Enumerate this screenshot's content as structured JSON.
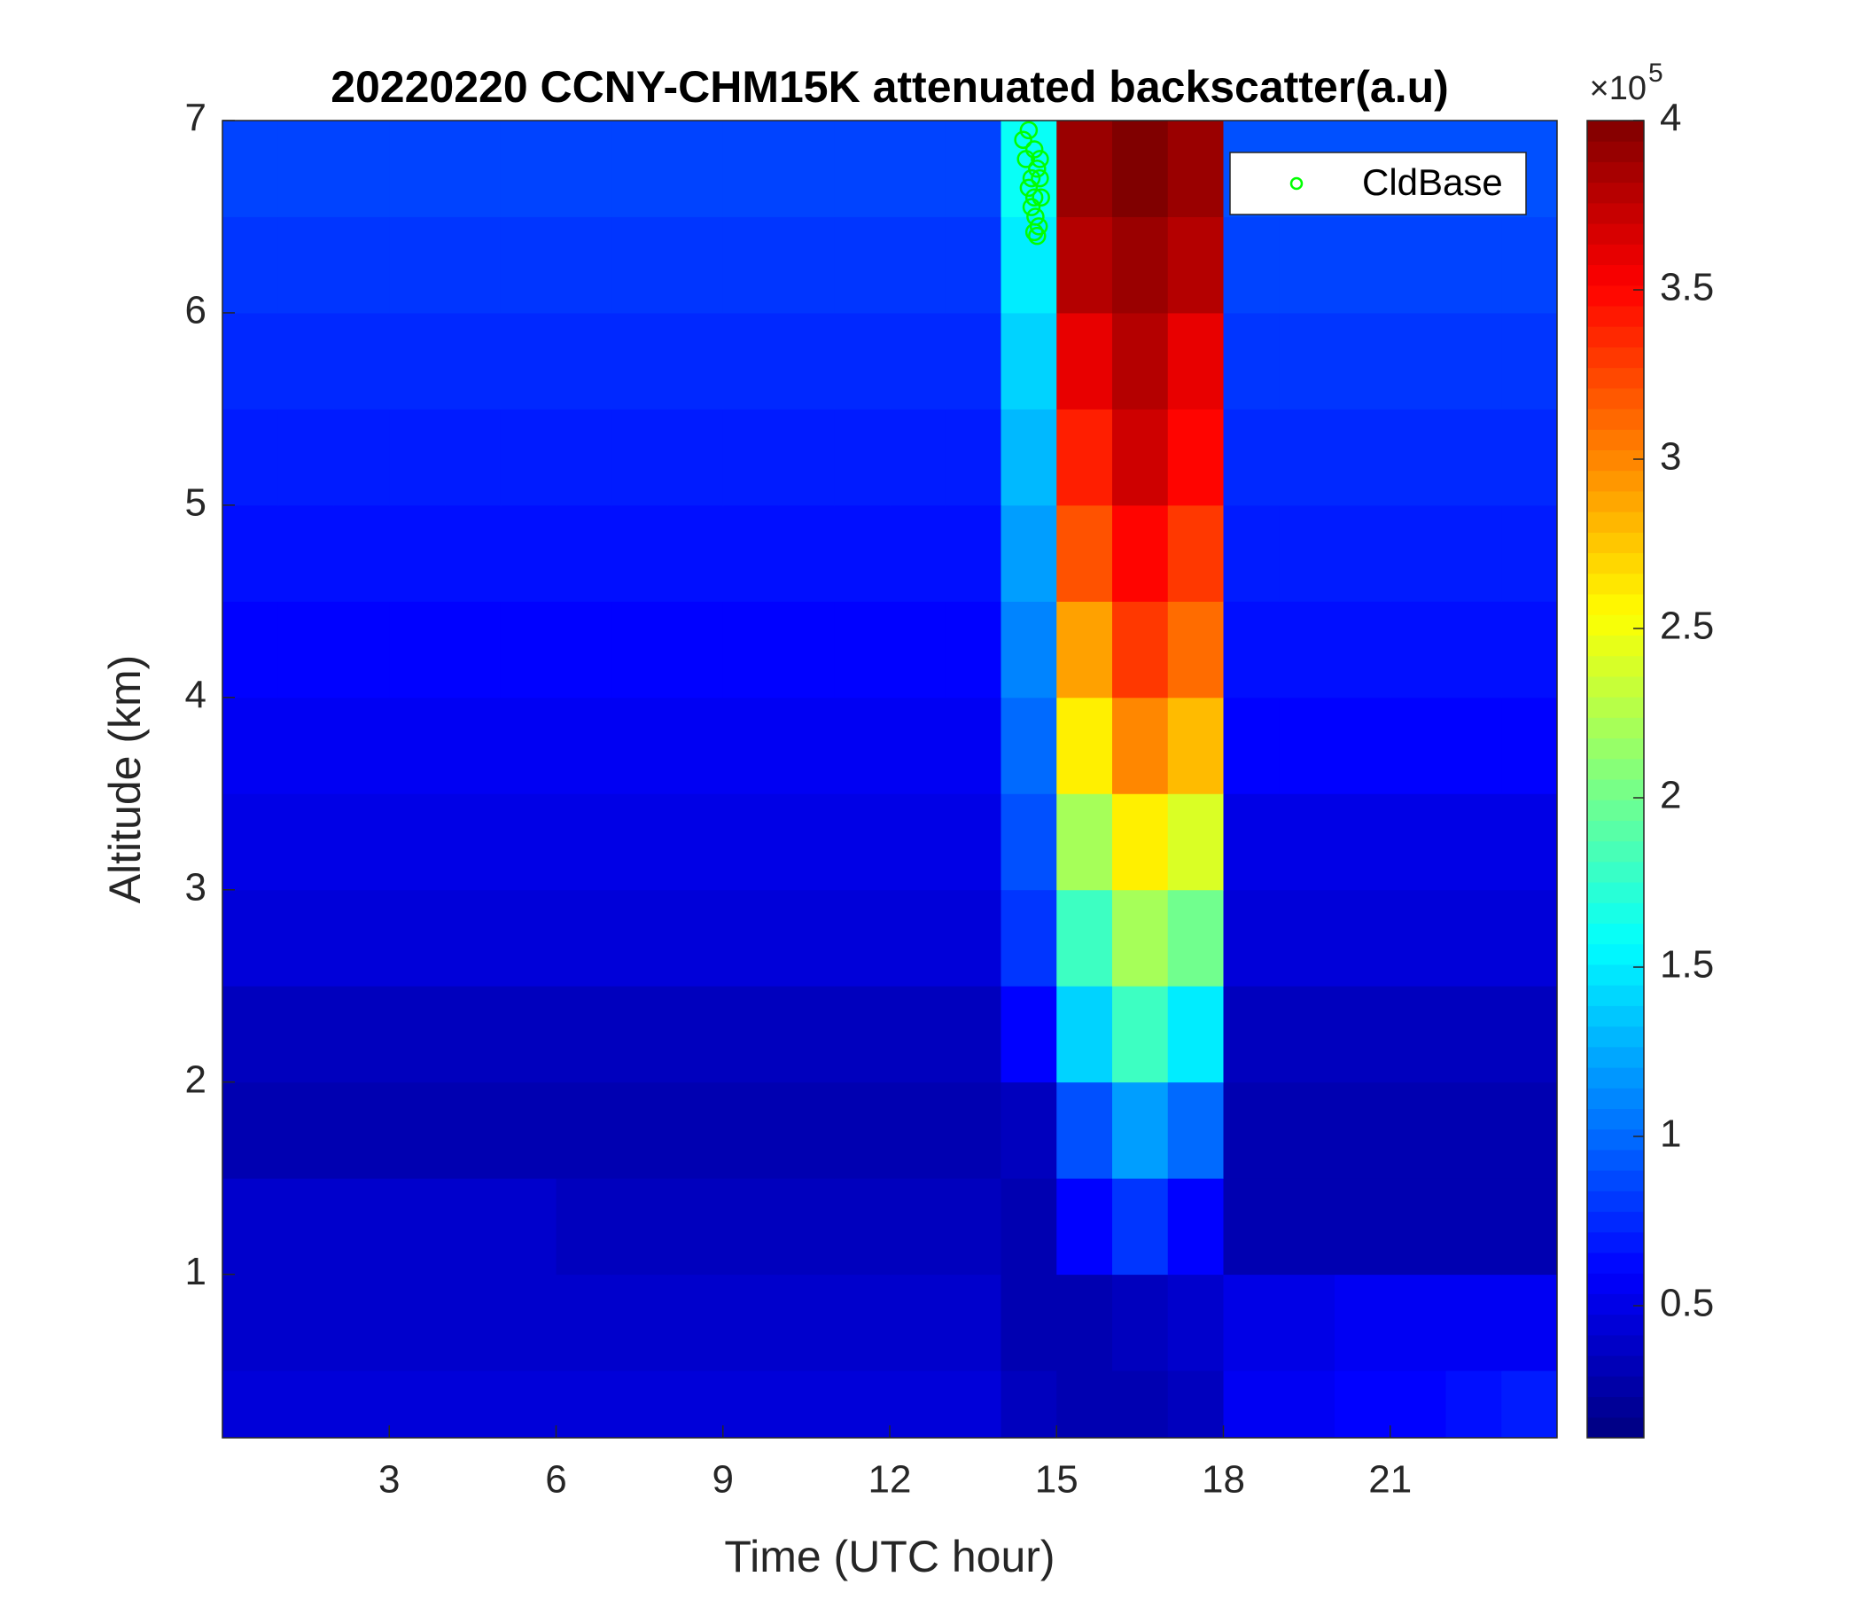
{
  "chart_data": {
    "type": "heatmap",
    "title": "20220220 CCNY-CHM15K attenuated backscatter(a.u)",
    "x_label": "Time (UTC hour)",
    "y_label": "Altitude (km)",
    "xlim": [
      0,
      24
    ],
    "xticks": [
      3,
      6,
      9,
      12,
      15,
      18,
      21
    ],
    "ylim": [
      0.15,
      7
    ],
    "yticks": [
      1,
      2,
      3,
      4,
      5,
      6,
      7
    ],
    "x_edges": [
      0,
      1,
      2,
      3,
      4,
      5,
      6,
      7,
      8,
      9,
      10,
      11,
      12,
      13,
      14,
      15,
      16,
      17,
      18,
      19,
      20,
      21,
      22,
      23,
      24
    ],
    "y_edges": [
      0.15,
      0.5,
      1,
      1.5,
      2,
      2.5,
      3,
      3.5,
      4,
      4.5,
      5,
      5.5,
      6,
      6.5,
      7
    ],
    "colormap": "jet",
    "clim": [
      0.11,
      4
    ],
    "cticks": [
      0.5,
      1,
      1.5,
      2,
      2.5,
      3,
      3.5,
      4
    ],
    "colorbar_scale": {
      "base": "×10",
      "exponent": "5"
    },
    "values": [
      [
        0.45,
        0.45,
        0.45,
        0.45,
        0.45,
        0.45,
        0.45,
        0.45,
        0.45,
        0.45,
        0.45,
        0.45,
        0.45,
        0.45,
        0.35,
        0.3,
        0.3,
        0.35,
        0.55,
        0.55,
        0.6,
        0.6,
        0.65,
        0.7
      ],
      [
        0.4,
        0.4,
        0.4,
        0.4,
        0.4,
        0.4,
        0.4,
        0.4,
        0.4,
        0.4,
        0.4,
        0.4,
        0.4,
        0.4,
        0.3,
        0.3,
        0.35,
        0.4,
        0.5,
        0.5,
        0.55,
        0.55,
        0.55,
        0.55
      ],
      [
        0.4,
        0.4,
        0.4,
        0.4,
        0.4,
        0.4,
        0.35,
        0.35,
        0.35,
        0.35,
        0.35,
        0.35,
        0.35,
        0.35,
        0.3,
        0.6,
        0.8,
        0.6,
        0.3,
        0.3,
        0.3,
        0.3,
        0.3,
        0.3
      ],
      [
        0.3,
        0.3,
        0.3,
        0.3,
        0.3,
        0.3,
        0.3,
        0.3,
        0.3,
        0.3,
        0.3,
        0.3,
        0.3,
        0.3,
        0.35,
        0.9,
        1.2,
        1.0,
        0.3,
        0.3,
        0.3,
        0.3,
        0.3,
        0.3
      ],
      [
        0.35,
        0.35,
        0.35,
        0.35,
        0.35,
        0.35,
        0.35,
        0.35,
        0.35,
        0.35,
        0.35,
        0.35,
        0.35,
        0.35,
        0.6,
        1.4,
        1.8,
        1.5,
        0.35,
        0.35,
        0.35,
        0.35,
        0.35,
        0.35
      ],
      [
        0.45,
        0.45,
        0.45,
        0.45,
        0.45,
        0.45,
        0.45,
        0.45,
        0.45,
        0.45,
        0.45,
        0.45,
        0.45,
        0.45,
        0.8,
        1.8,
        2.2,
        2.0,
        0.45,
        0.45,
        0.45,
        0.45,
        0.45,
        0.45
      ],
      [
        0.5,
        0.5,
        0.5,
        0.5,
        0.5,
        0.5,
        0.5,
        0.5,
        0.5,
        0.5,
        0.5,
        0.5,
        0.5,
        0.5,
        0.9,
        2.2,
        2.6,
        2.4,
        0.5,
        0.5,
        0.5,
        0.5,
        0.5,
        0.5
      ],
      [
        0.55,
        0.55,
        0.55,
        0.55,
        0.55,
        0.55,
        0.55,
        0.55,
        0.55,
        0.55,
        0.55,
        0.55,
        0.55,
        0.55,
        1.0,
        2.6,
        3.0,
        2.8,
        0.6,
        0.6,
        0.6,
        0.6,
        0.6,
        0.6
      ],
      [
        0.6,
        0.6,
        0.6,
        0.6,
        0.6,
        0.6,
        0.6,
        0.6,
        0.6,
        0.6,
        0.6,
        0.6,
        0.6,
        0.6,
        1.1,
        2.9,
        3.3,
        3.1,
        0.65,
        0.65,
        0.65,
        0.65,
        0.65,
        0.65
      ],
      [
        0.65,
        0.65,
        0.65,
        0.65,
        0.65,
        0.65,
        0.65,
        0.65,
        0.65,
        0.65,
        0.65,
        0.65,
        0.65,
        0.65,
        1.2,
        3.2,
        3.5,
        3.3,
        0.7,
        0.7,
        0.7,
        0.7,
        0.7,
        0.7
      ],
      [
        0.7,
        0.7,
        0.7,
        0.7,
        0.7,
        0.7,
        0.7,
        0.7,
        0.7,
        0.7,
        0.7,
        0.7,
        0.7,
        0.7,
        1.3,
        3.4,
        3.7,
        3.5,
        0.75,
        0.75,
        0.75,
        0.75,
        0.75,
        0.75
      ],
      [
        0.75,
        0.75,
        0.75,
        0.75,
        0.75,
        0.75,
        0.75,
        0.75,
        0.75,
        0.75,
        0.75,
        0.75,
        0.75,
        0.75,
        1.4,
        3.6,
        3.8,
        3.6,
        0.8,
        0.8,
        0.8,
        0.8,
        0.8,
        0.8
      ],
      [
        0.8,
        0.8,
        0.8,
        0.8,
        0.8,
        0.8,
        0.8,
        0.8,
        0.8,
        0.8,
        0.8,
        0.8,
        0.8,
        0.8,
        1.5,
        3.8,
        3.9,
        3.8,
        0.85,
        0.85,
        0.85,
        0.85,
        0.85,
        0.85
      ],
      [
        0.85,
        0.85,
        0.85,
        0.85,
        0.85,
        0.85,
        0.85,
        0.85,
        0.85,
        0.85,
        0.85,
        0.85,
        0.85,
        0.85,
        1.6,
        3.9,
        4.0,
        3.9,
        0.9,
        0.9,
        0.9,
        0.9,
        0.9,
        0.9
      ]
    ],
    "scatter": {
      "name": "CldBase",
      "color": "#00ff00",
      "x": [
        14.4,
        14.45,
        14.5,
        14.55,
        14.6,
        14.65,
        14.7,
        14.5,
        14.6,
        14.7,
        14.55,
        14.62,
        14.68,
        14.6,
        14.65,
        14.72
      ],
      "y": [
        6.9,
        6.8,
        6.95,
        6.7,
        6.85,
        6.75,
        6.8,
        6.65,
        6.6,
        6.7,
        6.55,
        6.5,
        6.45,
        6.42,
        6.4,
        6.6
      ]
    },
    "legend": "upper right"
  }
}
